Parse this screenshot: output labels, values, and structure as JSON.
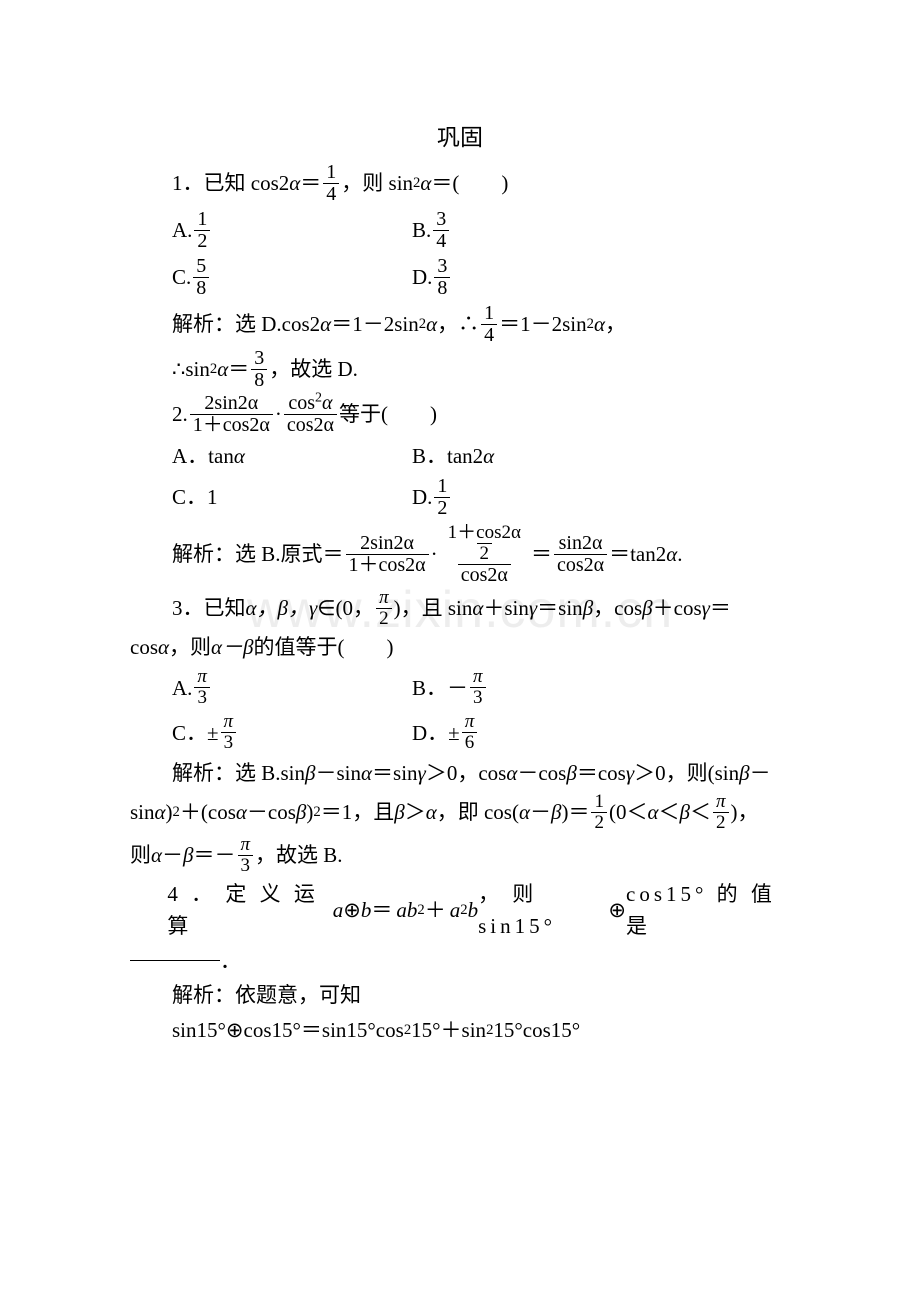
{
  "title": "巩固",
  "watermark": "www.zixin.com.cn",
  "colors": {
    "text": "#000000",
    "bg": "#ffffff",
    "watermark": "rgba(0,0,0,0.07)"
  },
  "q1": {
    "num": "1",
    "pre": "．已知 cos2",
    "alpha": "α",
    "eq": "＝",
    "frac_top": "1",
    "frac_bot": "4",
    "post": "，则 sin",
    "sq": "2",
    "post2": "＝(　　)",
    "A_lbl": "A.",
    "A_top": "1",
    "A_bot": "2",
    "B_lbl": "B.",
    "B_top": "3",
    "B_bot": "4",
    "C_lbl": "C.",
    "C_top": "5",
    "C_bot": "8",
    "D_lbl": "D.",
    "D_top": "3",
    "D_bot": "8",
    "sol1_a": "解析：选 D.cos2",
    "sol1_b": "＝1－2sin",
    "sol1_c": "，∴",
    "sol1_d": "＝1－2sin",
    "sol1_e": "，",
    "sol2_a": "∴sin",
    "sol2_b": "＝",
    "sol2_top": "3",
    "sol2_bot": "8",
    "sol2_c": "，故选 D."
  },
  "q2": {
    "num": "2.",
    "f1_top": "2sin2α",
    "f1_bot": "1＋cos2α",
    "dot": "·",
    "f2_top": "cos",
    "f2_topS": "2",
    "f2_topA": "α",
    "f2_bot": "cos2α",
    "post": "等于(　　)",
    "A": "A．tan",
    "A2": "α",
    "B": "B．tan2",
    "B2": "α",
    "C": "C．1",
    "D": "D.",
    "D_top": "1",
    "D_bot": "2",
    "sol_a": "解析：选 B.原式＝",
    "sf1_top": "2sin2α",
    "sf1_bot": "1＋cos2α",
    "sf2_tt": "1＋cos2α",
    "sf2_tb": "2",
    "sf2_bot": "cos2α",
    "eq2": "＝",
    "sf3_top": "sin2α",
    "sf3_bot": "cos2α",
    "eq3": "＝tan2",
    "end": "."
  },
  "q3": {
    "line1a": "3．已知 ",
    "abg": "α，β，γ",
    "line1b": "∈(0，",
    "pi": "π",
    "two": "2",
    "line1c": ")，且 sin",
    "a": "α",
    "plus": "＋sin",
    "g": "γ",
    "eqs": "＝sin",
    "b": "β",
    "line1d": "，cos",
    "plus2": "＋cos",
    "line2a": "cos",
    "line2b": "，则 ",
    "amb": "α－β",
    "line2c": " 的值等于(　　)",
    "A": "A.",
    "At": "π",
    "Ab": "3",
    "B": "B．－",
    "Bt": "π",
    "Bb": "3",
    "C": "C．±",
    "Ct": "π",
    "Cb": "3",
    "D": "D．±",
    "Dt": "π",
    "Db": "6",
    "s1": "解析：选 B.sin",
    "s1a": "－sin",
    "s1b": "＝sin",
    "s1c": "＞0，cos",
    "s1d": "－cos",
    "s1e": "＝cos",
    "s1f": "＞0，则(sin",
    "s1g": "－",
    "s2a": "sin",
    "s2b": ")",
    "s2c": "＋(cos",
    "s2d": "－cos",
    "s2e": ")",
    "s2f": "＝1，且 ",
    "s2g": "＞",
    "s2h": "，即 cos(",
    "s2i": "－",
    "s2j": ")＝",
    "half_t": "1",
    "half_b": "2",
    "s2k": "(0＜",
    "s2l": "＜",
    "s2m": "＜",
    "pit": "π",
    "pib": "2",
    "s2n": ")，",
    "s3a": "则 ",
    "s3b": "－",
    "s3c": "＝－",
    "s3t": "π",
    "s3bt": "3",
    "s3d": "，故选 B."
  },
  "q4": {
    "line1a": "4 ． 定 义 运 算 ",
    "ab": "a",
    "op1": "⊕",
    "bb": "b",
    "eq": " ＝ ",
    "r1a": "ab",
    "r1s": "2",
    "pl": " ＋ ",
    "r2a": "a",
    "r2s": "2",
    "r2b": "b",
    "line1b": " ， 则 sin15°",
    "op2": "⊕",
    "line1c": "cos15° 的 值 是",
    "line2": "．",
    "sol1": "解析：依题意，可知",
    "sol2a": "sin15°",
    "sol2b": "cos15°＝sin15°cos",
    "sol2c": "15°＋sin",
    "sol2d": "15°cos15°"
  }
}
